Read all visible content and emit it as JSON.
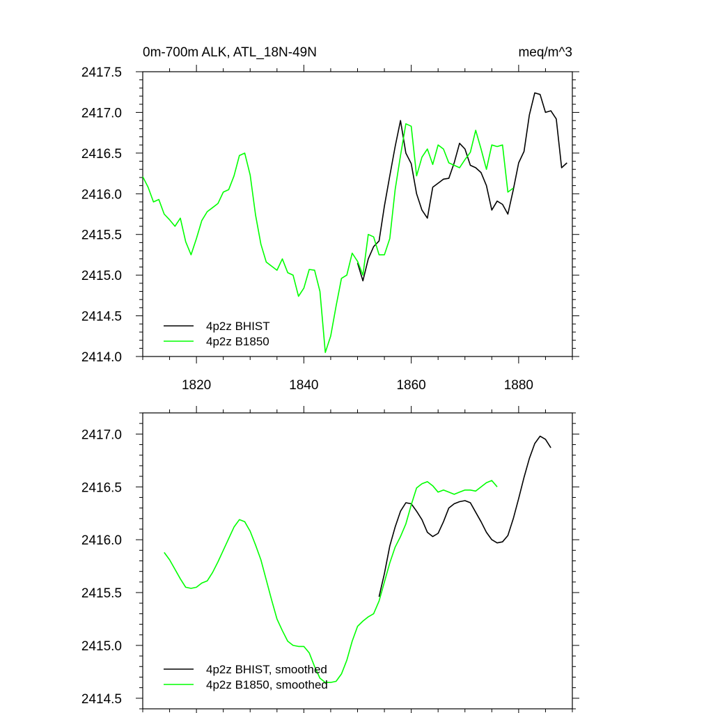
{
  "chart_data": [
    {
      "type": "line",
      "title": "0m-700m ALK, ATL_18N-49N",
      "units": "meq/m^3",
      "xlim": [
        1810,
        1890
      ],
      "ylim": [
        2414.0,
        2417.5
      ],
      "xticks": [
        1820,
        1840,
        1860,
        1880
      ],
      "yticks": [
        2414.0,
        2414.5,
        2415.0,
        2415.5,
        2416.0,
        2416.5,
        2417.0,
        2417.5
      ],
      "xtick_labels": [
        "1820",
        "1840",
        "1860",
        "1880"
      ],
      "ytick_labels": [
        "2414.0",
        "2414.5",
        "2415.0",
        "2415.5",
        "2416.0",
        "2416.5",
        "2417.0",
        "2417.5"
      ],
      "legend_position": "bottom-left",
      "series": [
        {
          "name": "4p2z BHIST",
          "color": "#000000",
          "x": [
            1850,
            1851,
            1852,
            1853,
            1854,
            1855,
            1856,
            1857,
            1858,
            1859,
            1860,
            1861,
            1862,
            1863,
            1864,
            1865,
            1866,
            1867,
            1868,
            1869,
            1870,
            1871,
            1872,
            1873,
            1874,
            1875,
            1876,
            1877,
            1878,
            1879,
            1880,
            1881,
            1882,
            1883,
            1884,
            1885,
            1886,
            1887,
            1888,
            1889
          ],
          "y": [
            2415.15,
            2414.93,
            2415.2,
            2415.35,
            2415.42,
            2415.85,
            2416.22,
            2416.58,
            2416.9,
            2416.5,
            2416.37,
            2416.0,
            2415.8,
            2415.7,
            2416.08,
            2416.13,
            2416.18,
            2416.19,
            2416.38,
            2416.62,
            2416.55,
            2416.35,
            2416.32,
            2416.26,
            2416.1,
            2415.8,
            2415.91,
            2415.87,
            2415.75,
            2416.05,
            2416.38,
            2416.52,
            2416.97,
            2417.24,
            2417.22,
            2417.0,
            2417.02,
            2416.92,
            2416.32,
            2416.38
          ]
        },
        {
          "name": "4p2z B1850",
          "color": "#00ff00",
          "x": [
            1810,
            1811,
            1812,
            1813,
            1814,
            1815,
            1816,
            1817,
            1818,
            1819,
            1820,
            1821,
            1822,
            1823,
            1824,
            1825,
            1826,
            1827,
            1828,
            1829,
            1830,
            1831,
            1832,
            1833,
            1834,
            1835,
            1836,
            1837,
            1838,
            1839,
            1840,
            1841,
            1842,
            1843,
            1844,
            1845,
            1846,
            1847,
            1848,
            1849,
            1850,
            1851,
            1852,
            1853,
            1854,
            1855,
            1856,
            1857,
            1858,
            1859,
            1860,
            1861,
            1862,
            1863,
            1864,
            1865,
            1866,
            1867,
            1868,
            1869,
            1870,
            1871,
            1872,
            1873,
            1874,
            1875,
            1876,
            1877,
            1878,
            1879
          ],
          "y": [
            2416.21,
            2416.08,
            2415.9,
            2415.93,
            2415.75,
            2415.68,
            2415.6,
            2415.7,
            2415.41,
            2415.25,
            2415.45,
            2415.67,
            2415.78,
            2415.83,
            2415.88,
            2416.02,
            2416.05,
            2416.22,
            2416.47,
            2416.5,
            2416.23,
            2415.74,
            2415.38,
            2415.16,
            2415.11,
            2415.06,
            2415.2,
            2415.03,
            2415.0,
            2414.74,
            2414.84,
            2415.07,
            2415.06,
            2414.8,
            2414.05,
            2414.25,
            2414.62,
            2414.96,
            2415.0,
            2415.27,
            2415.17,
            2415.0,
            2415.5,
            2415.47,
            2415.25,
            2415.25,
            2415.45,
            2416.05,
            2416.47,
            2416.86,
            2416.83,
            2416.22,
            2416.45,
            2416.55,
            2416.36,
            2416.6,
            2416.55,
            2416.38,
            2416.35,
            2416.32,
            2416.42,
            2416.51,
            2416.78,
            2416.55,
            2416.3,
            2416.6,
            2416.58,
            2416.6,
            2416.02,
            2416.07
          ]
        }
      ]
    },
    {
      "type": "line",
      "xlim": [
        1810,
        1890
      ],
      "ylim": [
        2414.4,
        2417.2
      ],
      "xticks": [
        1820,
        1840,
        1860,
        1880
      ],
      "yticks": [
        2414.5,
        2415.0,
        2415.5,
        2416.0,
        2416.5,
        2417.0
      ],
      "ytick_labels": [
        "2414.5",
        "2415.0",
        "2415.5",
        "2416.0",
        "2416.5",
        "2417.0"
      ],
      "legend_position": "bottom-left",
      "series": [
        {
          "name": "4p2z BHIST, smoothed",
          "color": "#000000",
          "x": [
            1854,
            1855,
            1856,
            1857,
            1858,
            1859,
            1860,
            1861,
            1862,
            1863,
            1864,
            1865,
            1866,
            1867,
            1868,
            1869,
            1870,
            1871,
            1872,
            1873,
            1874,
            1875,
            1876,
            1877,
            1878,
            1879,
            1880,
            1881,
            1882,
            1883,
            1884,
            1885,
            1886
          ],
          "y": [
            2415.46,
            2415.68,
            2415.94,
            2416.12,
            2416.27,
            2416.35,
            2416.34,
            2416.27,
            2416.19,
            2416.07,
            2416.03,
            2416.06,
            2416.17,
            2416.3,
            2416.34,
            2416.36,
            2416.37,
            2416.35,
            2416.26,
            2416.17,
            2416.07,
            2416.0,
            2415.97,
            2415.98,
            2416.04,
            2416.2,
            2416.39,
            2416.59,
            2416.77,
            2416.91,
            2416.98,
            2416.95,
            2416.87
          ]
        },
        {
          "name": "4p2z B1850, smoothed",
          "color": "#00ff00",
          "x": [
            1814,
            1815,
            1816,
            1817,
            1818,
            1819,
            1820,
            1821,
            1822,
            1823,
            1824,
            1825,
            1826,
            1827,
            1828,
            1829,
            1830,
            1831,
            1832,
            1833,
            1834,
            1835,
            1836,
            1837,
            1838,
            1839,
            1840,
            1841,
            1842,
            1843,
            1844,
            1845,
            1846,
            1847,
            1848,
            1849,
            1850,
            1851,
            1852,
            1853,
            1854,
            1855,
            1856,
            1857,
            1858,
            1859,
            1860,
            1861,
            1862,
            1863,
            1864,
            1865,
            1866,
            1867,
            1868,
            1869,
            1870,
            1871,
            1872,
            1873,
            1874,
            1875,
            1876
          ],
          "y": [
            2415.88,
            2415.81,
            2415.72,
            2415.63,
            2415.55,
            2415.54,
            2415.55,
            2415.59,
            2415.61,
            2415.69,
            2415.79,
            2415.9,
            2416.01,
            2416.12,
            2416.19,
            2416.17,
            2416.08,
            2415.95,
            2415.81,
            2415.62,
            2415.43,
            2415.25,
            2415.14,
            2415.04,
            2415.0,
            2414.99,
            2414.99,
            2414.93,
            2414.8,
            2414.69,
            2414.65,
            2414.65,
            2414.66,
            2414.73,
            2414.86,
            2415.04,
            2415.18,
            2415.23,
            2415.27,
            2415.3,
            2415.42,
            2415.6,
            2415.78,
            2415.93,
            2416.03,
            2416.15,
            2416.33,
            2416.49,
            2416.53,
            2416.55,
            2416.51,
            2416.45,
            2416.47,
            2416.45,
            2416.43,
            2416.45,
            2416.47,
            2416.47,
            2416.46,
            2416.5,
            2416.54,
            2416.56,
            2416.5
          ]
        }
      ]
    }
  ]
}
